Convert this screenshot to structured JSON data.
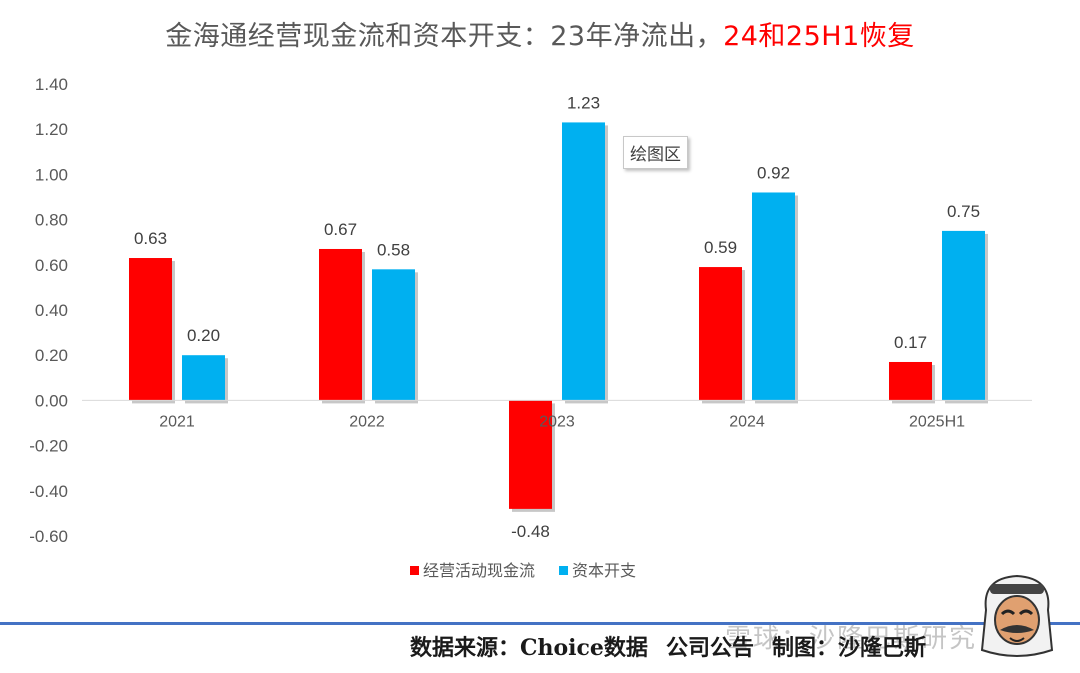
{
  "title": {
    "main": "金海通经营现金流和资本开支：23年净流出，",
    "highlight": "24和25H1恢复"
  },
  "colors": {
    "operating_cash_flow": "#ff0000",
    "capex": "#00b0f0",
    "title_highlight": "#ff0000",
    "bottom_rule": "#4472c4"
  },
  "chart_data": {
    "type": "bar",
    "categories": [
      "2021",
      "2022",
      "2023",
      "2024",
      "2025H1"
    ],
    "series": [
      {
        "name": "经营活动现金流",
        "values": [
          0.63,
          0.67,
          -0.48,
          0.59,
          0.17
        ]
      },
      {
        "name": "资本开支",
        "values": [
          0.2,
          0.58,
          1.23,
          0.92,
          0.75
        ]
      }
    ],
    "ylim": [
      -0.6,
      1.4
    ],
    "yticks": [
      "1.40",
      "1.20",
      "1.00",
      "0.80",
      "0.60",
      "0.40",
      "0.20",
      "0.00",
      "-0.20",
      "-0.40",
      "-0.60"
    ],
    "data_labels": [
      [
        "0.63",
        "0.67",
        "-0.48",
        "0.59",
        "0.17"
      ],
      [
        "0.20",
        "0.58",
        "1.23",
        "0.92",
        "0.75"
      ]
    ],
    "grid": false,
    "legend_position": "bottom"
  },
  "tooltip": "绘图区",
  "footer": {
    "source": "数据来源：Choice数据",
    "announcement": "公司公告",
    "author": "制图：沙隆巴斯"
  },
  "watermark": "雪球：沙隆巴斯研究",
  "icons": {
    "author_avatar": "avatar-icon"
  }
}
